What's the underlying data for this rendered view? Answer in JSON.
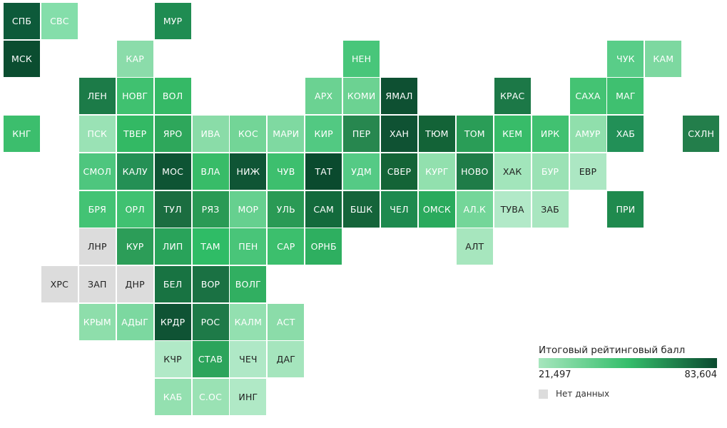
{
  "colors": {
    "no_data": "#dcdcdc",
    "gradient": [
      "#a6e6bd",
      "#35be6b",
      "#0b4a2f"
    ],
    "text_dark": "#1f1f1f",
    "text_light": "#ffffff"
  },
  "legend": {
    "title": "Итоговый рейтинговый балл",
    "min_label": "21,497",
    "max_label": "83,604",
    "no_data_label": "Нет данных"
  },
  "regions": [
    {
      "label": "СПБ",
      "color": "#0d5a3a"
    },
    {
      "label": "СВС",
      "color": "#84deaa"
    },
    {
      "label": "МУР",
      "color": "#1f8c52"
    },
    {
      "label": "МСК",
      "color": "#0b4d30"
    },
    {
      "label": "КАР",
      "color": "#8bdcaa"
    },
    {
      "label": "НЕН",
      "color": "#48c67a"
    },
    {
      "label": "ЧУК",
      "color": "#59cd88"
    },
    {
      "label": "КАМ",
      "color": "#7dd8a0"
    },
    {
      "label": "ЛЕН",
      "color": "#1c7b48"
    },
    {
      "label": "НОВГ",
      "color": "#40c170"
    },
    {
      "label": "ВОЛ",
      "color": "#35b966"
    },
    {
      "label": "АРХ",
      "color": "#6bd292"
    },
    {
      "label": "КОМИ",
      "color": "#6cd292"
    },
    {
      "label": "ЯМАЛ",
      "color": "#0e5032"
    },
    {
      "label": "КРАС",
      "color": "#1c7847"
    },
    {
      "label": "САХА",
      "color": "#44c373"
    },
    {
      "label": "МАГ",
      "color": "#3fc070"
    },
    {
      "label": "КНГ",
      "color": "#3cbe6d"
    },
    {
      "label": "ПСК",
      "color": "#9ae2b5"
    },
    {
      "label": "ТВЕР",
      "color": "#33b964"
    },
    {
      "label": "ЯРО",
      "color": "#2ea75b"
    },
    {
      "label": "ИВА",
      "color": "#8adca8"
    },
    {
      "label": "КОС",
      "color": "#73d597"
    },
    {
      "label": "МАРИ",
      "color": "#7fd9a1"
    },
    {
      "label": "КИР",
      "color": "#52c982"
    },
    {
      "label": "ПЕР",
      "color": "#27874f"
    },
    {
      "label": "ХАН",
      "color": "#0f5233"
    },
    {
      "label": "ТЮМ",
      "color": "#136337"
    },
    {
      "label": "ТОМ",
      "color": "#2a9d57"
    },
    {
      "label": "КЕМ",
      "color": "#38bc69"
    },
    {
      "label": "ИРК",
      "color": "#41c171"
    },
    {
      "label": "АМУР",
      "color": "#90dfac"
    },
    {
      "label": "ХАБ",
      "color": "#229057"
    },
    {
      "label": "СХЛН",
      "color": "#237e4b"
    },
    {
      "label": "СМОЛ",
      "color": "#4ec67e"
    },
    {
      "label": "КАЛУ",
      "color": "#249055"
    },
    {
      "label": "МОС",
      "color": "#0e5434"
    },
    {
      "label": "ВЛА",
      "color": "#38bc68"
    },
    {
      "label": "НИЖ",
      "color": "#0f5535"
    },
    {
      "label": "ЧУВ",
      "color": "#3dbf6e"
    },
    {
      "label": "ТАТ",
      "color": "#0a4a2e"
    },
    {
      "label": "УДМ",
      "color": "#55ca85"
    },
    {
      "label": "СВЕР",
      "color": "#146437"
    },
    {
      "label": "КУРГ",
      "color": "#92e0ae"
    },
    {
      "label": "НОВО",
      "color": "#1f7c48"
    },
    {
      "label": "ХАК",
      "color": "#a2e5bb"
    },
    {
      "label": "БУР",
      "color": "#9be2b5"
    },
    {
      "label": "ЕВР",
      "color": "#ace7c3"
    },
    {
      "label": "БРЯ",
      "color": "#43c374"
    },
    {
      "label": "ОРЛ",
      "color": "#40c171"
    },
    {
      "label": "ТУЛ",
      "color": "#1b6d40"
    },
    {
      "label": "РЯЗ",
      "color": "#2a9a55"
    },
    {
      "label": "МОР",
      "color": "#66d08f"
    },
    {
      "label": "УЛЬ",
      "color": "#2a9a55"
    },
    {
      "label": "САМ",
      "color": "#136a3c"
    },
    {
      "label": "БШК",
      "color": "#15643a"
    },
    {
      "label": "ЧЕЛ",
      "color": "#1e8a4f"
    },
    {
      "label": "ОМСК",
      "color": "#2aaa5d"
    },
    {
      "label": "АЛ.К",
      "color": "#74d699"
    },
    {
      "label": "ТУВА",
      "color": "#b2e9c8"
    },
    {
      "label": "ЗАБ",
      "color": "#a9e6c0"
    },
    {
      "label": "ПРИ",
      "color": "#1f8a4e"
    },
    {
      "label": "ЛНР",
      "color": "#dcdcdc",
      "no_data": true
    },
    {
      "label": "КУР",
      "color": "#2c9d58"
    },
    {
      "label": "ЛИП",
      "color": "#29a35a"
    },
    {
      "label": "ТАМ",
      "color": "#2fbc66"
    },
    {
      "label": "ПЕН",
      "color": "#49c579"
    },
    {
      "label": "САР",
      "color": "#3cbf6d"
    },
    {
      "label": "ОРНБ",
      "color": "#2eaf60"
    },
    {
      "label": "АЛТ",
      "color": "#a7e6be"
    },
    {
      "label": "ХРС",
      "color": "#dcdcdc",
      "no_data": true
    },
    {
      "label": "ЗАП",
      "color": "#dcdcdc",
      "no_data": true
    },
    {
      "label": "ДНР",
      "color": "#dcdcdc",
      "no_data": true
    },
    {
      "label": "БЕЛ",
      "color": "#187342"
    },
    {
      "label": "ВОР",
      "color": "#1a7143"
    },
    {
      "label": "ВОЛГ",
      "color": "#31af61"
    },
    {
      "label": "КРЫМ",
      "color": "#8edeab"
    },
    {
      "label": "АДЫГ",
      "color": "#7cd8a0"
    },
    {
      "label": "КРДР",
      "color": "#0f5334"
    },
    {
      "label": "РОС",
      "color": "#1e7a48"
    },
    {
      "label": "КАЛМ",
      "color": "#93e0b0"
    },
    {
      "label": "АСТ",
      "color": "#8bdca9"
    },
    {
      "label": "КЧР",
      "color": "#b1e9c7"
    },
    {
      "label": "СТАВ",
      "color": "#2ca45b"
    },
    {
      "label": "ЧЕЧ",
      "color": "#afe8c6"
    },
    {
      "label": "ДАГ",
      "color": "#a5e5bd"
    },
    {
      "label": "КАБ",
      "color": "#94e0b0"
    },
    {
      "label": "С.ОС",
      "color": "#9ae2b4"
    },
    {
      "label": "ИНГ",
      "color": "#b0e9c6"
    }
  ]
}
